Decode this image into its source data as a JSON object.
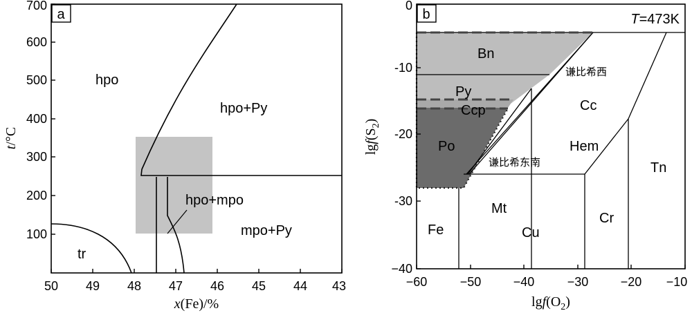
{
  "panel_a": {
    "tag": "a",
    "xlabel": {
      "italic": "x",
      "rest": "(Fe)/%"
    },
    "ylabel": {
      "italic": "t",
      "rest": "/°C"
    },
    "xticks": [
      "50",
      "49",
      "48",
      "47",
      "46",
      "45",
      "44",
      "43"
    ],
    "yticks": [
      "100",
      "200",
      "300",
      "400",
      "500",
      "600",
      "700"
    ],
    "labels": {
      "hpo": "hpo",
      "hpo_py": "hpo+Py",
      "hpo_mpo": "hpo+mpo",
      "mpo_py": "mpo+Py",
      "tr": "tr"
    },
    "colors": {
      "highlight": "#c4c4c4"
    }
  },
  "panel_b": {
    "tag": "b",
    "temperature": {
      "italic": "T",
      "rest": "=473K"
    },
    "xlabel": {
      "pre": "lg",
      "italic": "f",
      "rest": "(O",
      "sub": "2",
      "end": ")"
    },
    "ylabel": {
      "pre": "lg",
      "italic": "f",
      "rest": "(S",
      "sub": "2",
      "end": ")"
    },
    "xticks": [
      "−60",
      "−50",
      "−40",
      "−30",
      "−20",
      "−10"
    ],
    "yticks": [
      "0",
      "-10",
      "-20",
      "-30",
      "−40"
    ],
    "labels": {
      "bn": "Bn",
      "py": "Py",
      "ccp": "Ccp",
      "po": "Po",
      "cc": "Cc",
      "hem": "Hem",
      "tn": "Tn",
      "mt": "Mt",
      "cu": "Cu",
      "cr": "Cr",
      "fe": "Fe",
      "qianbi_west": "谦比希西",
      "qianbi_southeast": "谦比希东南"
    },
    "colors": {
      "light": "#bdbdbd",
      "mid": "#a9a9a9",
      "dark": "#6b6b6b"
    }
  }
}
